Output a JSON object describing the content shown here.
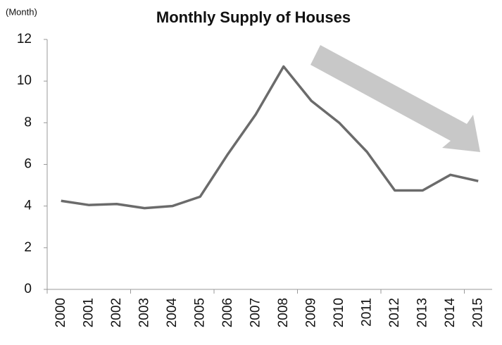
{
  "chart_data": {
    "type": "line",
    "title": "Monthly Supply  of Houses",
    "y_axis_label": "(Month)",
    "categories": [
      "2000",
      "2001",
      "2002",
      "2003",
      "2004",
      "2005",
      "2006",
      "2007",
      "2008",
      "2009",
      "2010",
      "2011",
      "2012",
      "2013",
      "2014",
      "2015"
    ],
    "series": [
      {
        "name": "Monthly Supply of Houses",
        "color": "#6b6b6b",
        "values": [
          4.25,
          4.05,
          4.1,
          3.9,
          4.0,
          4.45,
          6.5,
          8.4,
          10.7,
          9.05,
          8.0,
          6.6,
          4.75,
          4.75,
          5.5,
          5.2
        ]
      }
    ],
    "ylim": [
      0,
      12
    ],
    "yticks": [
      0,
      2,
      4,
      6,
      8,
      10,
      12
    ],
    "grid": false,
    "legend": false
  }
}
